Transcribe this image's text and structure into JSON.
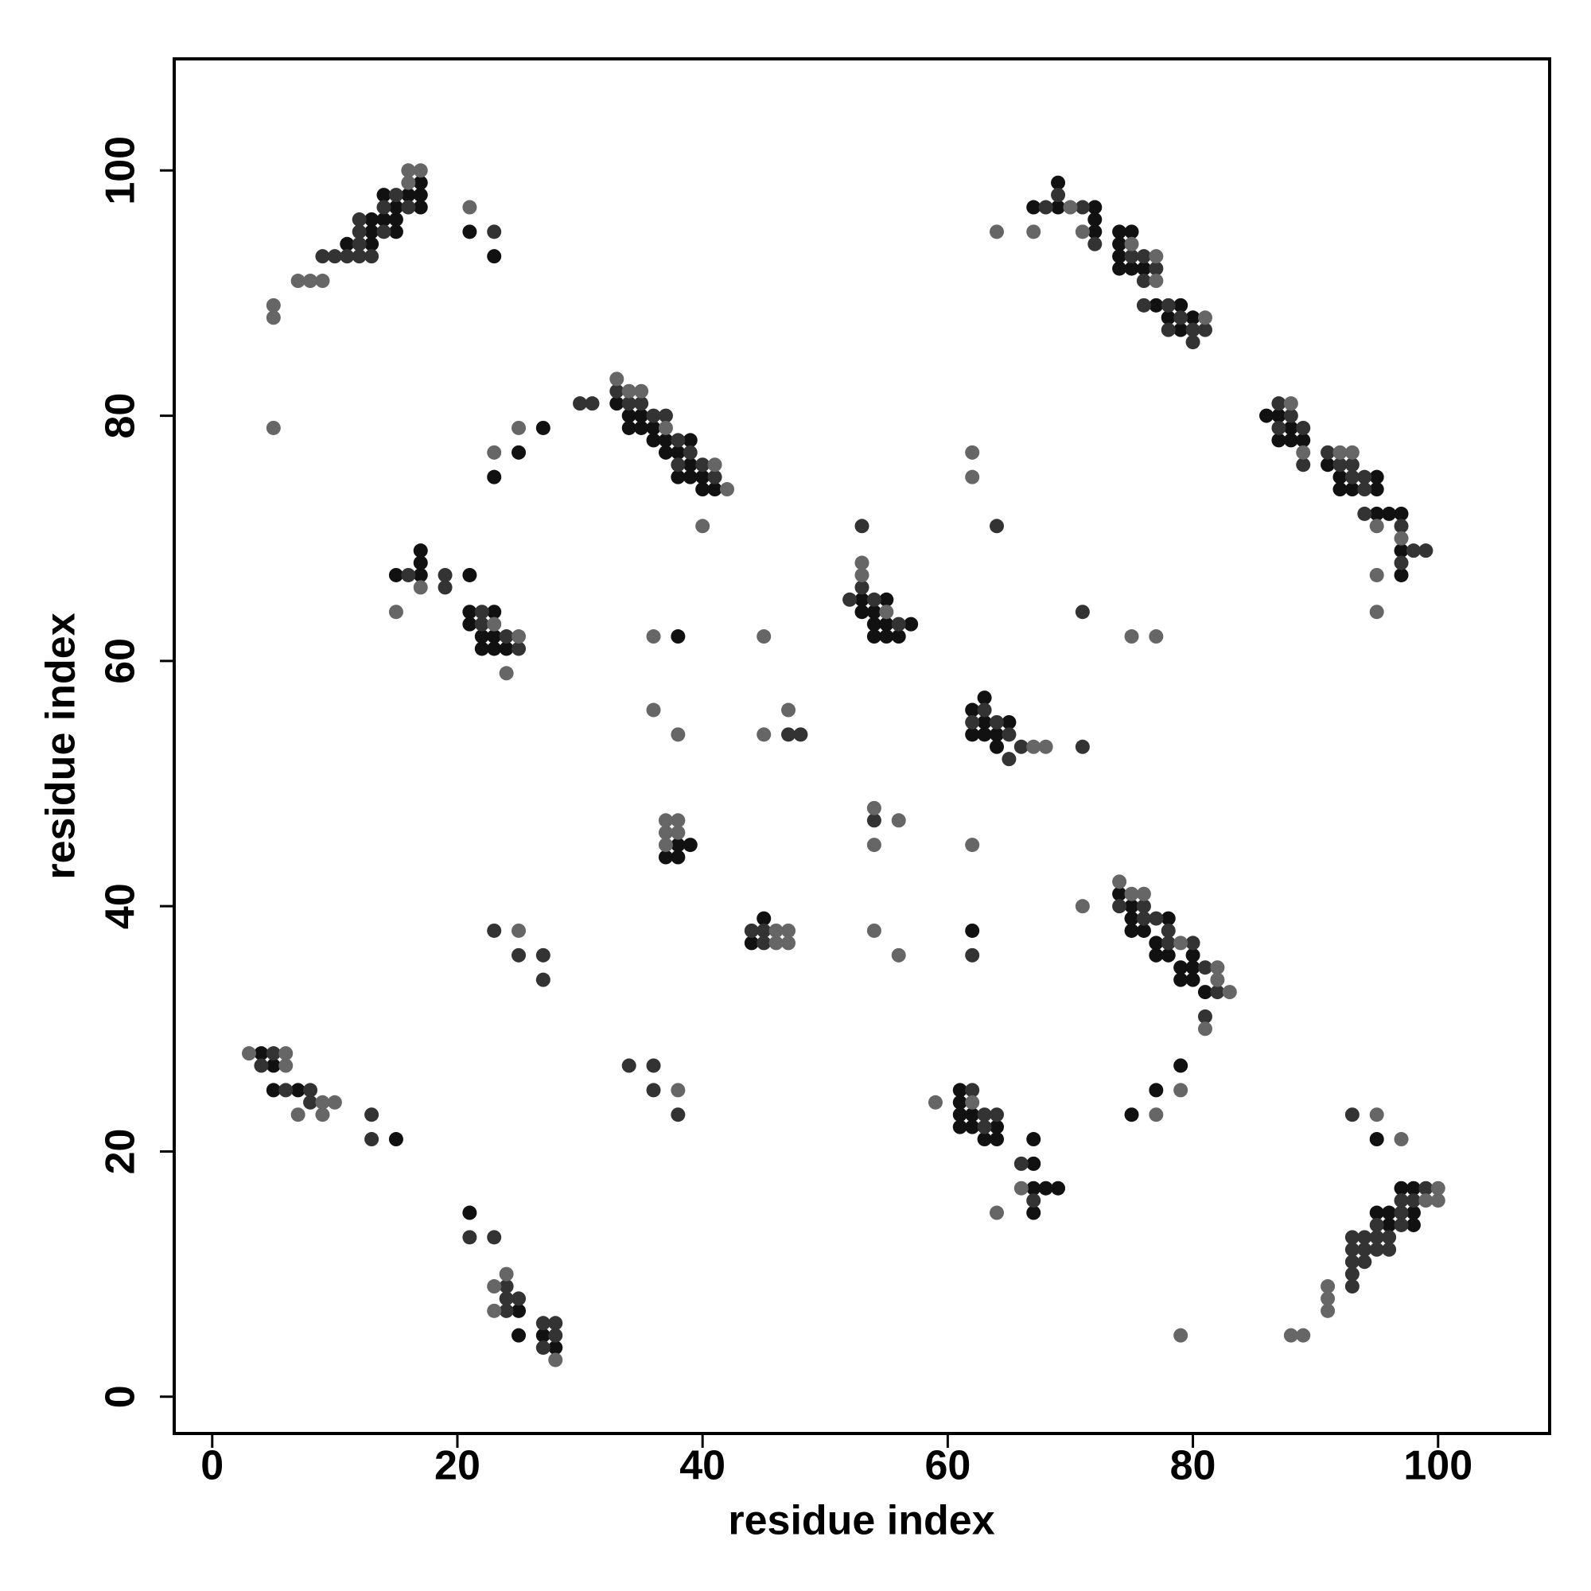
{
  "chart_data": {
    "type": "scatter",
    "x_label": "residue index",
    "y_label": "residue index",
    "xlim": [
      -3.1,
      109.1
    ],
    "ylim": [
      -3,
      109.1
    ],
    "xticks": [
      0,
      20,
      40,
      60,
      80,
      100
    ],
    "yticks": [
      0,
      20,
      40,
      60,
      80,
      100
    ],
    "grid": false,
    "series": [
      {
        "color": "#111111",
        "x": [
          11,
          13,
          13,
          13,
          14,
          14,
          15,
          15,
          15,
          16,
          17,
          17,
          17,
          21,
          23,
          33,
          34,
          34,
          35,
          35,
          36,
          36,
          37,
          37,
          38,
          38,
          39,
          39,
          39,
          40,
          40,
          41,
          23,
          25,
          27,
          15,
          17,
          17,
          17,
          21,
          21,
          21,
          22,
          22,
          23,
          23,
          23,
          24,
          38,
          53,
          53,
          54,
          54,
          54,
          55,
          55,
          55,
          56,
          57,
          62,
          62,
          63,
          63,
          63,
          64,
          64,
          65,
          37,
          38,
          38,
          39,
          44,
          45,
          62,
          74,
          75,
          75,
          75,
          76,
          77,
          77,
          78,
          78,
          79,
          79,
          80,
          80,
          80,
          81,
          79,
          77,
          75,
          4,
          5,
          5,
          7,
          15,
          21,
          25,
          25,
          27,
          28,
          61,
          61,
          61,
          61,
          62,
          62,
          63,
          64,
          64,
          67,
          67,
          67,
          67,
          68,
          69,
          67,
          69,
          69,
          72,
          72,
          72,
          74,
          74,
          74,
          74,
          75,
          75,
          76,
          77,
          78,
          79,
          79,
          80,
          86,
          87,
          87,
          88,
          88,
          89,
          91,
          92,
          92,
          93,
          95,
          95,
          95,
          96,
          97,
          97,
          97,
          95,
          96,
          96,
          97,
          98,
          98,
          98,
          95
        ],
        "values": [
          94,
          94,
          95,
          96,
          96,
          98,
          95,
          96,
          97,
          98,
          97,
          98,
          99,
          95,
          93,
          81,
          80,
          79,
          80,
          79,
          79,
          78,
          78,
          77,
          77,
          75,
          78,
          76,
          75,
          75,
          74,
          74,
          75,
          77,
          79,
          67,
          69,
          68,
          67,
          67,
          64,
          63,
          62,
          61,
          64,
          62,
          61,
          61,
          62,
          65,
          64,
          64,
          63,
          62,
          65,
          63,
          62,
          62,
          63,
          56,
          54,
          57,
          55,
          54,
          54,
          53,
          55,
          44,
          45,
          44,
          45,
          37,
          39,
          38,
          41,
          40,
          39,
          38,
          38,
          37,
          36,
          39,
          36,
          35,
          34,
          36,
          35,
          34,
          33,
          27,
          25,
          23,
          28,
          27,
          25,
          25,
          21,
          15,
          7,
          5,
          5,
          4,
          25,
          24,
          23,
          22,
          23,
          22,
          21,
          22,
          21,
          21,
          19,
          17,
          15,
          17,
          17,
          97,
          99,
          97,
          97,
          96,
          95,
          95,
          94,
          93,
          92,
          95,
          92,
          92,
          89,
          88,
          89,
          87,
          88,
          80,
          80,
          78,
          79,
          78,
          78,
          76,
          75,
          74,
          74,
          75,
          74,
          72,
          72,
          72,
          69,
          67,
          15,
          15,
          14,
          17,
          17,
          15,
          14,
          21
        ]
      },
      {
        "color": "#333333",
        "x": [
          9,
          10,
          11,
          12,
          12,
          12,
          12,
          13,
          14,
          14,
          15,
          16,
          23,
          30,
          31,
          33,
          34,
          35,
          36,
          37,
          38,
          38,
          39,
          40,
          41,
          16,
          19,
          19,
          22,
          22,
          24,
          25,
          47,
          48,
          53,
          53,
          52,
          54,
          56,
          62,
          63,
          64,
          65,
          65,
          66,
          71,
          64,
          71,
          54,
          44,
          45,
          45,
          23,
          25,
          27,
          27,
          62,
          74,
          76,
          76,
          77,
          78,
          78,
          80,
          81,
          82,
          81,
          4,
          5,
          6,
          8,
          8,
          13,
          13,
          34,
          36,
          36,
          38,
          21,
          23,
          24,
          24,
          24,
          25,
          27,
          27,
          28,
          28,
          62,
          63,
          63,
          64,
          66,
          67,
          68,
          69,
          71,
          72,
          75,
          76,
          76,
          77,
          78,
          78,
          79,
          80,
          80,
          81,
          76,
          87,
          87,
          88,
          89,
          89,
          91,
          92,
          93,
          93,
          94,
          94,
          94,
          97,
          97,
          98,
          99,
          93,
          93,
          93,
          93,
          93,
          94,
          94,
          94,
          95,
          95,
          95,
          96,
          96,
          97,
          97,
          97,
          98,
          99,
          93
        ],
        "values": [
          93,
          93,
          93,
          93,
          94,
          95,
          96,
          93,
          95,
          97,
          98,
          97,
          95,
          81,
          81,
          82,
          81,
          81,
          80,
          80,
          78,
          76,
          77,
          76,
          75,
          67,
          67,
          66,
          64,
          63,
          62,
          61,
          54,
          54,
          71,
          66,
          65,
          65,
          63,
          55,
          56,
          55,
          54,
          52,
          53,
          53,
          71,
          64,
          47,
          38,
          38,
          37,
          38,
          36,
          36,
          34,
          36,
          40,
          40,
          39,
          39,
          38,
          37,
          37,
          35,
          33,
          31,
          27,
          28,
          25,
          25,
          24,
          23,
          21,
          27,
          27,
          25,
          23,
          13,
          13,
          9,
          8,
          7,
          8,
          6,
          4,
          6,
          5,
          25,
          23,
          22,
          23,
          19,
          16,
          97,
          98,
          97,
          94,
          93,
          93,
          91,
          92,
          89,
          87,
          88,
          87,
          86,
          87,
          89,
          81,
          79,
          80,
          79,
          76,
          77,
          76,
          76,
          75,
          75,
          74,
          72,
          71,
          68,
          69,
          69,
          13,
          12,
          11,
          10,
          9,
          13,
          12,
          11,
          14,
          13,
          12,
          13,
          12,
          16,
          15,
          14,
          16,
          17,
          23
        ]
      },
      {
        "color": "#666666",
        "x": [
          5,
          5,
          7,
          8,
          9,
          16,
          16,
          17,
          5,
          21,
          33,
          34,
          35,
          37,
          41,
          42,
          40,
          23,
          25,
          15,
          17,
          23,
          24,
          25,
          36,
          36,
          38,
          45,
          45,
          47,
          53,
          53,
          55,
          67,
          68,
          62,
          62,
          75,
          77,
          37,
          37,
          37,
          38,
          38,
          54,
          56,
          54,
          62,
          46,
          46,
          47,
          47,
          25,
          54,
          56,
          71,
          74,
          75,
          76,
          79,
          82,
          82,
          83,
          81,
          79,
          77,
          3,
          6,
          6,
          7,
          9,
          9,
          10,
          38,
          23,
          23,
          24,
          28,
          59,
          62,
          66,
          64,
          64,
          67,
          70,
          71,
          75,
          77,
          77,
          81,
          88,
          89,
          92,
          93,
          95,
          97,
          95,
          95,
          79,
          88,
          89,
          91,
          91,
          91,
          99,
          100,
          100,
          95,
          97
        ],
        "values": [
          89,
          88,
          91,
          91,
          91,
          99,
          100,
          100,
          79,
          97,
          83,
          82,
          82,
          79,
          76,
          74,
          71,
          77,
          79,
          64,
          66,
          63,
          59,
          62,
          62,
          56,
          54,
          62,
          54,
          56,
          68,
          67,
          64,
          53,
          53,
          77,
          75,
          62,
          62,
          47,
          46,
          45,
          47,
          46,
          48,
          47,
          45,
          45,
          38,
          37,
          38,
          37,
          38,
          38,
          36,
          40,
          42,
          41,
          41,
          37,
          35,
          34,
          33,
          30,
          25,
          23,
          28,
          28,
          27,
          23,
          24,
          23,
          24,
          25,
          9,
          7,
          10,
          3,
          24,
          24,
          17,
          15,
          95,
          95,
          97,
          95,
          94,
          93,
          91,
          88,
          81,
          77,
          77,
          77,
          71,
          70,
          67,
          64,
          5,
          5,
          5,
          9,
          8,
          7,
          16,
          17,
          16,
          23,
          21
        ]
      }
    ]
  }
}
